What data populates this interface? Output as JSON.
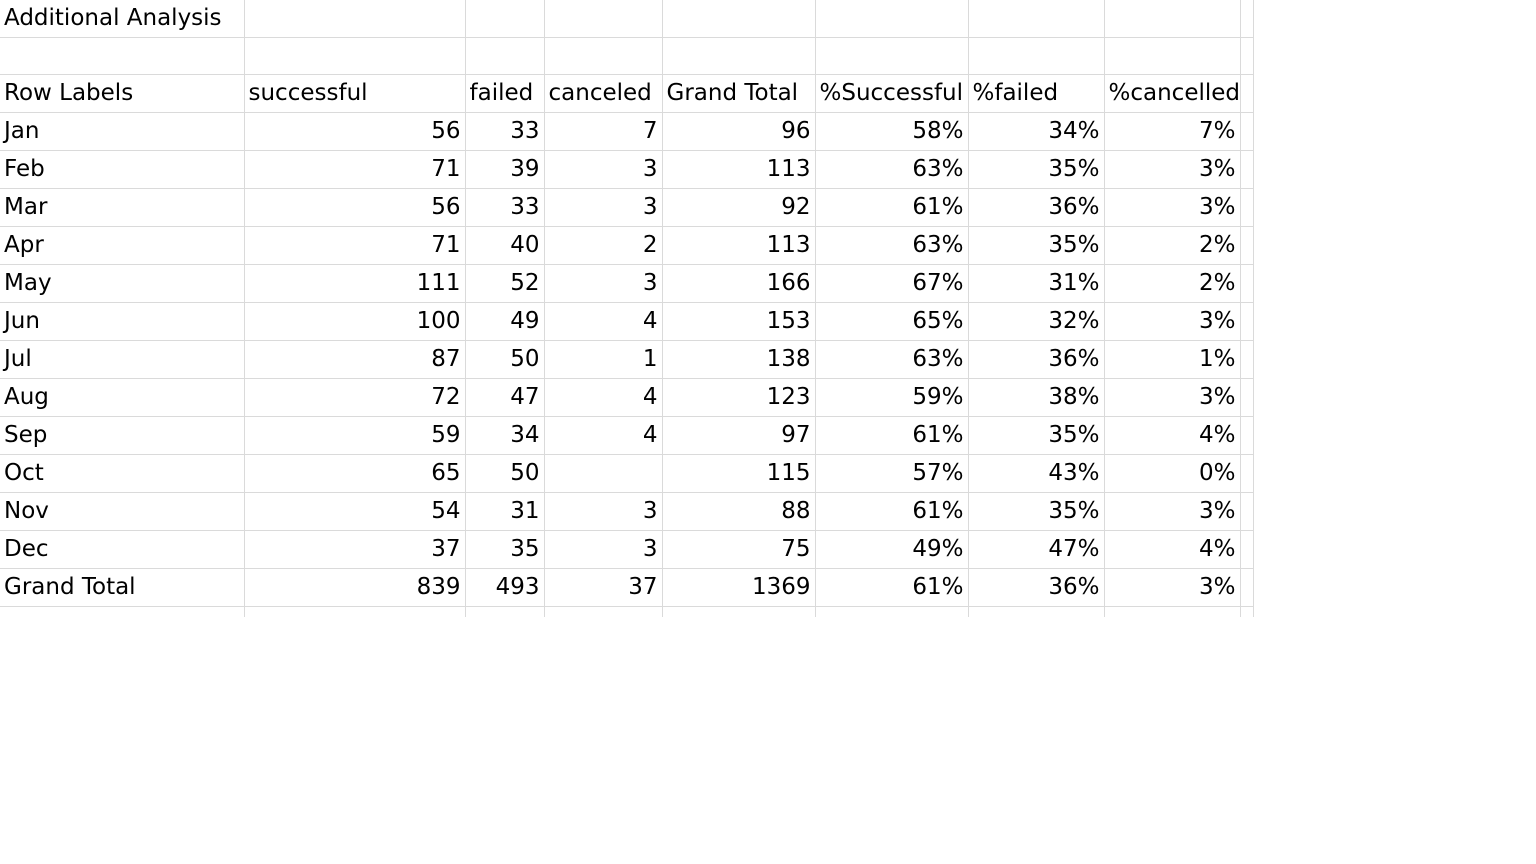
{
  "sheet": {
    "title": "Additional Analysis",
    "headers": [
      "Row Labels",
      "successful",
      "failed",
      "canceled",
      "Grand Total",
      "%Successful",
      "%failed",
      "%cancelled"
    ],
    "rows": [
      {
        "label": "Jan",
        "successful": "56",
        "failed": "33",
        "canceled": "7",
        "total": "96",
        "pct_successful": "58%",
        "pct_failed": "34%",
        "pct_cancelled": "7%"
      },
      {
        "label": "Feb",
        "successful": "71",
        "failed": "39",
        "canceled": "3",
        "total": "113",
        "pct_successful": "63%",
        "pct_failed": "35%",
        "pct_cancelled": "3%"
      },
      {
        "label": "Mar",
        "successful": "56",
        "failed": "33",
        "canceled": "3",
        "total": "92",
        "pct_successful": "61%",
        "pct_failed": "36%",
        "pct_cancelled": "3%"
      },
      {
        "label": "Apr",
        "successful": "71",
        "failed": "40",
        "canceled": "2",
        "total": "113",
        "pct_successful": "63%",
        "pct_failed": "35%",
        "pct_cancelled": "2%"
      },
      {
        "label": "May",
        "successful": "111",
        "failed": "52",
        "canceled": "3",
        "total": "166",
        "pct_successful": "67%",
        "pct_failed": "31%",
        "pct_cancelled": "2%"
      },
      {
        "label": "Jun",
        "successful": "100",
        "failed": "49",
        "canceled": "4",
        "total": "153",
        "pct_successful": "65%",
        "pct_failed": "32%",
        "pct_cancelled": "3%"
      },
      {
        "label": "Jul",
        "successful": "87",
        "failed": "50",
        "canceled": "1",
        "total": "138",
        "pct_successful": "63%",
        "pct_failed": "36%",
        "pct_cancelled": "1%"
      },
      {
        "label": "Aug",
        "successful": "72",
        "failed": "47",
        "canceled": "4",
        "total": "123",
        "pct_successful": "59%",
        "pct_failed": "38%",
        "pct_cancelled": "3%"
      },
      {
        "label": "Sep",
        "successful": "59",
        "failed": "34",
        "canceled": "4",
        "total": "97",
        "pct_successful": "61%",
        "pct_failed": "35%",
        "pct_cancelled": "4%"
      },
      {
        "label": "Oct",
        "successful": "65",
        "failed": "50",
        "canceled": "",
        "total": "115",
        "pct_successful": "57%",
        "pct_failed": "43%",
        "pct_cancelled": "0%"
      },
      {
        "label": "Nov",
        "successful": "54",
        "failed": "31",
        "canceled": "3",
        "total": "88",
        "pct_successful": "61%",
        "pct_failed": "35%",
        "pct_cancelled": "3%"
      },
      {
        "label": "Dec",
        "successful": "37",
        "failed": "35",
        "canceled": "3",
        "total": "75",
        "pct_successful": "49%",
        "pct_failed": "47%",
        "pct_cancelled": "4%"
      }
    ],
    "grand_total": {
      "label": "Grand Total",
      "successful": "839",
      "failed": "493",
      "canceled": "37",
      "total": "1369",
      "pct_successful": "61%",
      "pct_failed": "36%",
      "pct_cancelled": "3%"
    }
  }
}
